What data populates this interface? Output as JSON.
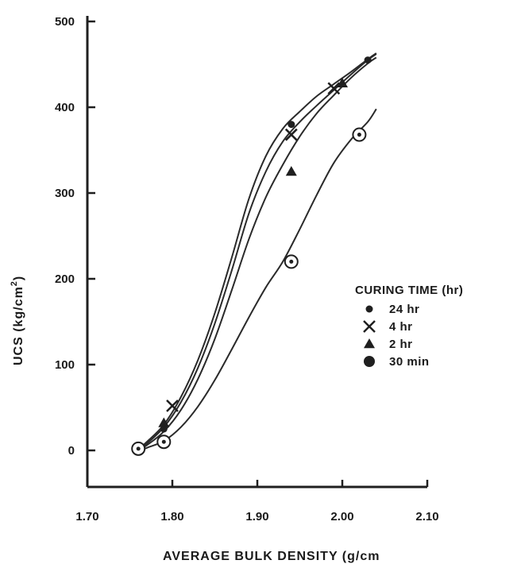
{
  "chart_data": {
    "type": "line",
    "xlabel": "AVERAGE BULK DENSITY (g/cm",
    "ylabel": "UCS (kg/cm",
    "ylabel_sup": "2",
    "ylabel_end": ")",
    "xlim": [
      1.7,
      2.1
    ],
    "ylim": [
      -50,
      500
    ],
    "xticks": [
      1.7,
      1.8,
      1.9,
      2.0,
      2.1
    ],
    "xtick_labels": [
      "1.70",
      "1.80",
      "1.90",
      "2.00",
      "2.10"
    ],
    "yticks": [
      0,
      100,
      200,
      300,
      400,
      500
    ],
    "ytick_labels": [
      "0",
      "100",
      "200",
      "300",
      "400",
      "500"
    ],
    "legend": {
      "title": "CURING TIME (hr)",
      "placement": "right",
      "entries": [
        "24 hr",
        "4 hr",
        "2 hr",
        "30 min"
      ]
    },
    "series": [
      {
        "name": "24 hr",
        "marker": "dot",
        "points": [
          [
            1.76,
            0
          ],
          [
            1.79,
            25
          ],
          [
            1.94,
            380
          ],
          [
            2.03,
            455
          ]
        ],
        "curve": [
          [
            1.755,
            -3
          ],
          [
            1.77,
            10
          ],
          [
            1.79,
            30
          ],
          [
            1.81,
            62
          ],
          [
            1.83,
            105
          ],
          [
            1.85,
            160
          ],
          [
            1.87,
            225
          ],
          [
            1.89,
            293
          ],
          [
            1.91,
            343
          ],
          [
            1.93,
            375
          ],
          [
            1.95,
            395
          ],
          [
            1.97,
            413
          ],
          [
            1.99,
            427
          ],
          [
            2.01,
            441
          ],
          [
            2.03,
            456
          ],
          [
            2.04,
            463
          ]
        ]
      },
      {
        "name": "4 hr",
        "marker": "x",
        "points": [
          [
            1.8,
            52
          ],
          [
            1.94,
            368
          ],
          [
            1.99,
            422
          ]
        ],
        "curve": [
          [
            1.755,
            -3
          ],
          [
            1.77,
            8
          ],
          [
            1.79,
            27
          ],
          [
            1.81,
            56
          ],
          [
            1.83,
            96
          ],
          [
            1.85,
            148
          ],
          [
            1.87,
            210
          ],
          [
            1.89,
            276
          ],
          [
            1.91,
            325
          ],
          [
            1.93,
            360
          ],
          [
            1.95,
            383
          ],
          [
            1.97,
            402
          ],
          [
            1.99,
            420
          ],
          [
            2.01,
            438
          ],
          [
            2.03,
            455
          ],
          [
            2.04,
            462
          ]
        ]
      },
      {
        "name": "2 hr",
        "marker": "triangle",
        "points": [
          [
            1.79,
            32
          ],
          [
            1.94,
            325
          ],
          [
            2.0,
            428
          ]
        ],
        "curve": [
          [
            1.755,
            -3
          ],
          [
            1.77,
            6
          ],
          [
            1.79,
            22
          ],
          [
            1.81,
            47
          ],
          [
            1.83,
            83
          ],
          [
            1.85,
            130
          ],
          [
            1.87,
            187
          ],
          [
            1.89,
            246
          ],
          [
            1.91,
            295
          ],
          [
            1.93,
            333
          ],
          [
            1.95,
            366
          ],
          [
            1.97,
            393
          ],
          [
            1.99,
            414
          ],
          [
            2.01,
            434
          ],
          [
            2.03,
            451
          ],
          [
            2.04,
            458
          ]
        ]
      },
      {
        "name": "30 min",
        "marker": "circle",
        "points": [
          [
            1.76,
            2
          ],
          [
            1.79,
            10
          ],
          [
            1.94,
            220
          ],
          [
            2.02,
            368
          ]
        ],
        "curve": [
          [
            1.755,
            -3
          ],
          [
            1.77,
            3
          ],
          [
            1.79,
            11
          ],
          [
            1.81,
            27
          ],
          [
            1.83,
            51
          ],
          [
            1.85,
            82
          ],
          [
            1.87,
            118
          ],
          [
            1.89,
            155
          ],
          [
            1.91,
            190
          ],
          [
            1.93,
            220
          ],
          [
            1.95,
            258
          ],
          [
            1.97,
            298
          ],
          [
            1.99,
            335
          ],
          [
            2.01,
            362
          ],
          [
            2.03,
            383
          ],
          [
            2.04,
            398
          ]
        ]
      }
    ]
  }
}
